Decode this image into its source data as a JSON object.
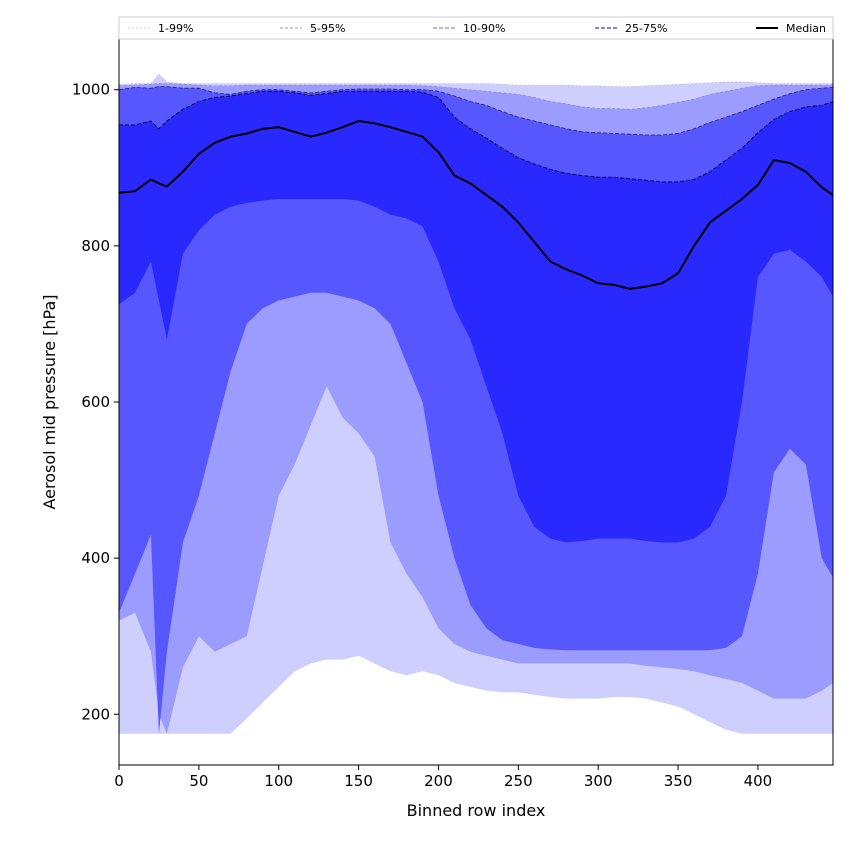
{
  "chart_data": {
    "type": "area",
    "xlabel": "Binned row index",
    "ylabel": "Aerosol mid pressure [hPa]",
    "xlim": [
      0,
      447
    ],
    "ylim": [
      135,
      1065
    ],
    "x_ticks": [
      0,
      50,
      100,
      150,
      200,
      250,
      300,
      350,
      400
    ],
    "y_ticks": [
      200,
      400,
      600,
      800,
      1000
    ],
    "legend": {
      "placement": "top",
      "entries": [
        "1-99%",
        "5-95%",
        "10-90%",
        "25-75%",
        "Median"
      ]
    },
    "x": [
      0,
      10,
      20,
      25,
      30,
      40,
      50,
      60,
      70,
      80,
      90,
      100,
      110,
      120,
      130,
      140,
      150,
      160,
      170,
      180,
      190,
      200,
      210,
      220,
      230,
      240,
      250,
      260,
      270,
      280,
      290,
      300,
      310,
      320,
      330,
      340,
      350,
      360,
      370,
      380,
      390,
      400,
      410,
      420,
      430,
      440,
      447
    ],
    "bands": [
      {
        "name": "1-99%",
        "color": "#cfcfff",
        "lower": [
          175,
          175,
          175,
          175,
          175,
          175,
          175,
          175,
          175,
          195,
          215,
          235,
          255,
          265,
          270,
          270,
          275,
          265,
          255,
          250,
          255,
          250,
          240,
          235,
          230,
          228,
          228,
          225,
          222,
          220,
          220,
          220,
          222,
          222,
          220,
          215,
          210,
          200,
          190,
          180,
          175,
          175,
          175,
          175,
          175,
          175,
          175
        ],
        "upper": [
          1007,
          1008,
          1008,
          1020,
          1010,
          1008,
          1008,
          1008,
          1008,
          1008,
          1008,
          1008,
          1008,
          1008,
          1008,
          1008,
          1008,
          1008,
          1008,
          1008,
          1008,
          1008,
          1008,
          1008,
          1008,
          1007,
          1006,
          1006,
          1006,
          1006,
          1005,
          1005,
          1004,
          1004,
          1005,
          1006,
          1007,
          1008,
          1009,
          1010,
          1010,
          1009,
          1008,
          1008,
          1008,
          1008,
          1008
        ]
      },
      {
        "name": "5-95%",
        "color": "#9c9cff",
        "lower": [
          320,
          330,
          280,
          200,
          175,
          260,
          300,
          280,
          290,
          300,
          390,
          480,
          520,
          570,
          620,
          580,
          560,
          530,
          420,
          380,
          350,
          310,
          290,
          280,
          275,
          270,
          265,
          265,
          265,
          265,
          265,
          265,
          265,
          265,
          262,
          260,
          258,
          255,
          250,
          245,
          240,
          230,
          220,
          220,
          220,
          230,
          240
        ],
        "upper": [
          1005,
          1006,
          1007,
          1008,
          1008,
          1007,
          1006,
          1005,
          1005,
          1006,
          1006,
          1006,
          1006,
          1006,
          1006,
          1006,
          1006,
          1006,
          1006,
          1006,
          1005,
          1004,
          1002,
          1000,
          998,
          996,
          994,
          990,
          985,
          982,
          978,
          976,
          976,
          975,
          977,
          980,
          984,
          988,
          994,
          998,
          1002,
          1005,
          1006,
          1006,
          1006,
          1006,
          1006
        ]
      },
      {
        "name": "10-90%",
        "color": "#5757ff",
        "lower": [
          330,
          380,
          430,
          175,
          280,
          420,
          480,
          560,
          640,
          700,
          720,
          730,
          735,
          740,
          740,
          735,
          730,
          720,
          700,
          650,
          600,
          480,
          400,
          340,
          310,
          295,
          290,
          285,
          283,
          282,
          282,
          282,
          282,
          282,
          282,
          282,
          282,
          282,
          282,
          285,
          300,
          380,
          510,
          540,
          520,
          400,
          375
        ],
        "upper": [
          1000,
          1003,
          1002,
          1004,
          1004,
          1002,
          1002,
          996,
          994,
          998,
          1000,
          1000,
          998,
          996,
          998,
          1000,
          1001,
          1001,
          1001,
          1000,
          1000,
          998,
          992,
          985,
          980,
          972,
          965,
          960,
          955,
          950,
          946,
          945,
          944,
          943,
          942,
          942,
          944,
          950,
          958,
          965,
          972,
          980,
          988,
          995,
          1000,
          1002,
          1003
        ]
      },
      {
        "name": "25-75%",
        "color": "#2929ff",
        "lower": [
          725,
          740,
          780,
          730,
          680,
          790,
          820,
          840,
          850,
          855,
          858,
          860,
          860,
          860,
          860,
          860,
          858,
          850,
          840,
          835,
          825,
          780,
          720,
          680,
          620,
          560,
          480,
          440,
          425,
          420,
          422,
          425,
          425,
          425,
          422,
          420,
          420,
          425,
          440,
          480,
          600,
          760,
          790,
          795,
          780,
          760,
          735
        ],
        "upper": [
          955,
          955,
          960,
          950,
          960,
          975,
          985,
          990,
          992,
          995,
          998,
          998,
          996,
          993,
          995,
          998,
          998,
          998,
          998,
          998,
          997,
          990,
          965,
          950,
          938,
          925,
          913,
          905,
          898,
          893,
          890,
          888,
          888,
          886,
          884,
          882,
          882,
          885,
          895,
          910,
          925,
          945,
          962,
          972,
          978,
          980,
          985
        ]
      }
    ],
    "median": {
      "name": "Median",
      "color": "#000000",
      "values": [
        868,
        870,
        885,
        880,
        876,
        895,
        918,
        932,
        940,
        944,
        950,
        952,
        946,
        940,
        945,
        952,
        960,
        957,
        952,
        946,
        940,
        920,
        890,
        880,
        865,
        850,
        830,
        805,
        780,
        770,
        762,
        752,
        750,
        745,
        748,
        752,
        765,
        800,
        830,
        845,
        860,
        878,
        910,
        906,
        895,
        875,
        865
      ]
    }
  }
}
